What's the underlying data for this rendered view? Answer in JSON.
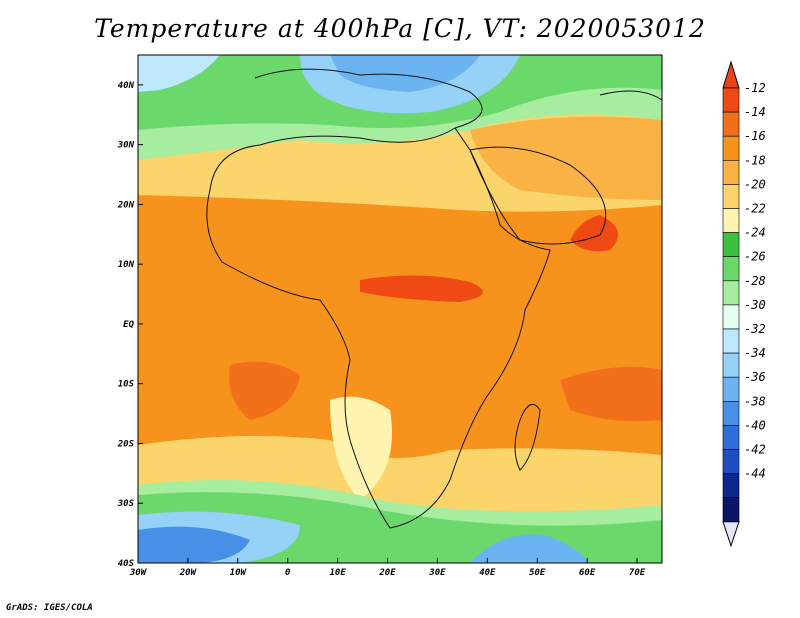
{
  "title": "Temperature at 400hPa [C], VT: 2020053012",
  "credit": "GrADS: IGES/COLA",
  "map": {
    "lon_range": [
      -30,
      75
    ],
    "lat_range": [
      -40,
      45
    ],
    "lat_labels": [
      "40N",
      "30N",
      "20N",
      "10N",
      "EQ",
      "10S",
      "20S",
      "30S",
      "40S"
    ],
    "lat_values": [
      40,
      30,
      20,
      10,
      0,
      -10,
      -20,
      -30,
      -40
    ],
    "lon_labels": [
      "30W",
      "20W",
      "10W",
      "0",
      "10E",
      "20E",
      "30E",
      "40E",
      "50E",
      "60E",
      "70E"
    ],
    "lon_values": [
      -30,
      -20,
      -10,
      0,
      10,
      20,
      30,
      40,
      50,
      60,
      70
    ]
  },
  "colorbar": {
    "levels": [
      "-12",
      "-14",
      "-16",
      "-18",
      "-20",
      "-22",
      "-24",
      "-26",
      "-28",
      "-30",
      "-32",
      "-34",
      "-36",
      "-38",
      "-40",
      "-42",
      "-44"
    ],
    "colors": [
      "#ef4a14",
      "#f3701a",
      "#f7931c",
      "#f9b243",
      "#fbd46c",
      "#fff5b0",
      "#3fbf3f",
      "#6ad86a",
      "#a6eda0",
      "#e6fff0",
      "#bde8fb",
      "#96d1f8",
      "#6bb4f1",
      "#4790e6",
      "#2e6ed8",
      "#1f4ec4",
      "#0c2890",
      "#0a1666"
    ],
    "top_color": "#e8441a",
    "bottom_color": "#e6e6fa"
  }
}
